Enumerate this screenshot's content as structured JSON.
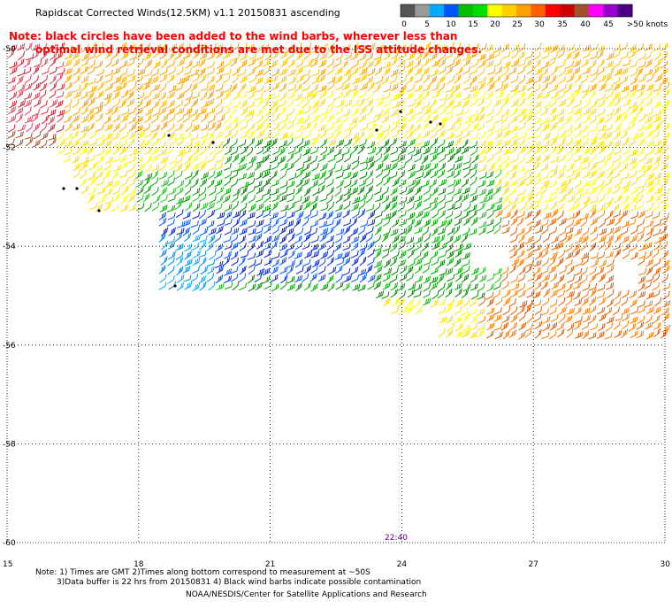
{
  "title": "Rapidscat Corrected Winds(12.5KM) v1.1 20150831 ascending",
  "note_line1": "Note: black circles have been added to the wind barbs, wherever less than",
  "note_line2": "optimal wind retrieval conditions are met due to the ISS attitude changes.",
  "colorbar": {
    "labels": [
      "0",
      "5",
      "10",
      "15",
      "20",
      "25",
      "30",
      "35",
      "40",
      "45",
      ">50 knots"
    ],
    "colors": [
      "#555555",
      "#999999",
      "#00aaff",
      "#0055ff",
      "#00c000",
      "#00e000",
      "#ffff00",
      "#ffd000",
      "#ffa000",
      "#ff6000",
      "#ff0000",
      "#cc0000",
      "#a0522d",
      "#ff00ff",
      "#9900cc",
      "#4b0082"
    ]
  },
  "axes": {
    "lat_labels": [
      "-52",
      "-54",
      "-56",
      "-58",
      "-60"
    ],
    "lat_top_label": "-50",
    "lon_labels": [
      "15",
      "18",
      "21",
      "24",
      "27",
      "30"
    ]
  },
  "time_label": "22:40",
  "footer": {
    "line1": "Note: 1) Times are GMT 2)Times along bottom correspond to measurement at ~50S",
    "line2": "3)Data buffer is 22 hrs from 20150831 4) Black wind barbs indicate possible contamination",
    "line3": "NOAA/NESDIS/Center for Satellite Applications and Research"
  }
}
